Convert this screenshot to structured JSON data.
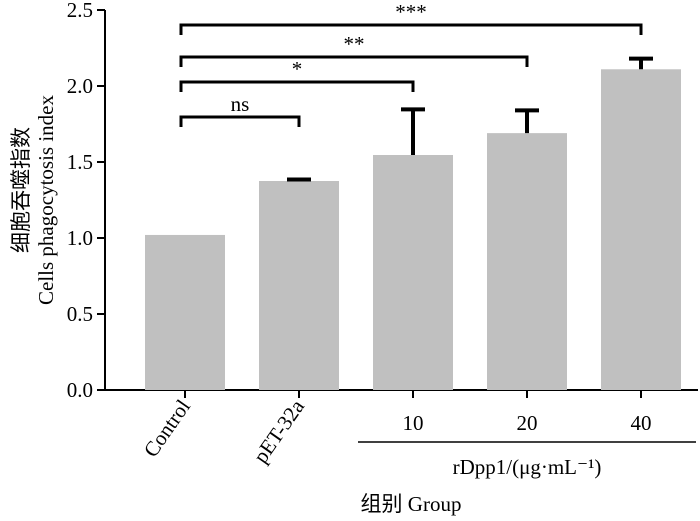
{
  "chart_data": {
    "type": "bar",
    "y_label_lines": [
      "细胞吞噬指数",
      "Cells phagocytosis index"
    ],
    "x_label": "组别 Group",
    "group_label": {
      "text": "rDpp1/(μg·mL⁻¹)",
      "from": 2,
      "to": 4
    },
    "categories": [
      "Control",
      "pET-32a",
      "10",
      "20",
      "40"
    ],
    "values": [
      1.02,
      1.375,
      1.546,
      1.69,
      2.11
    ],
    "errors": [
      null,
      0.01,
      0.3,
      0.15,
      0.07
    ],
    "color": "#c0c0c0",
    "ylim": [
      0,
      2.5
    ],
    "yticks": [
      {
        "value": 0,
        "label": "0.0"
      },
      0.5,
      {
        "value": 1,
        "label": "1.0"
      },
      1.5,
      {
        "value": 2,
        "label": "2.0"
      },
      2.5
    ],
    "annotations": [
      {
        "text": "ns",
        "from": 0,
        "to": 1
      },
      {
        "text": "*",
        "from": 0,
        "to": 2
      },
      {
        "text": "**",
        "from": 0,
        "to": 3
      },
      {
        "text": "***",
        "from": 0,
        "to": 4
      }
    ]
  }
}
